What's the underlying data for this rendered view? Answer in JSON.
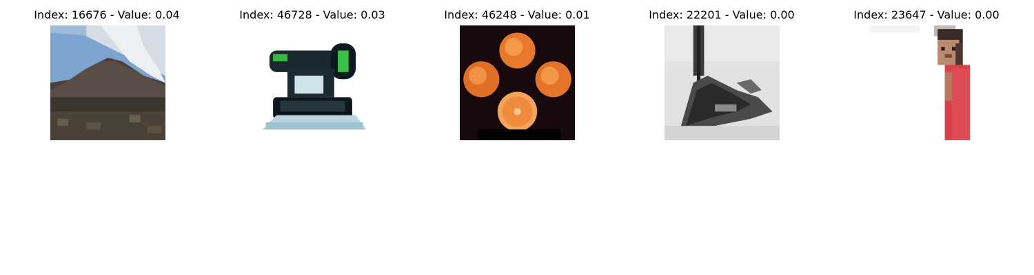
{
  "panels": [
    {
      "title": "Index: 16676 - Value: 0.04",
      "subject": "mountain-landscape"
    },
    {
      "title": "Index: 46728 - Value: 0.03",
      "subject": "stage-light-projector"
    },
    {
      "title": "Index: 46248 - Value: 0.01",
      "subject": "oranges"
    },
    {
      "title": "Index: 22201 - Value: 0.00",
      "subject": "grayscale-boat-sketch"
    },
    {
      "title": "Index: 23647 - Value: 0.00",
      "subject": "person-in-red"
    }
  ]
}
